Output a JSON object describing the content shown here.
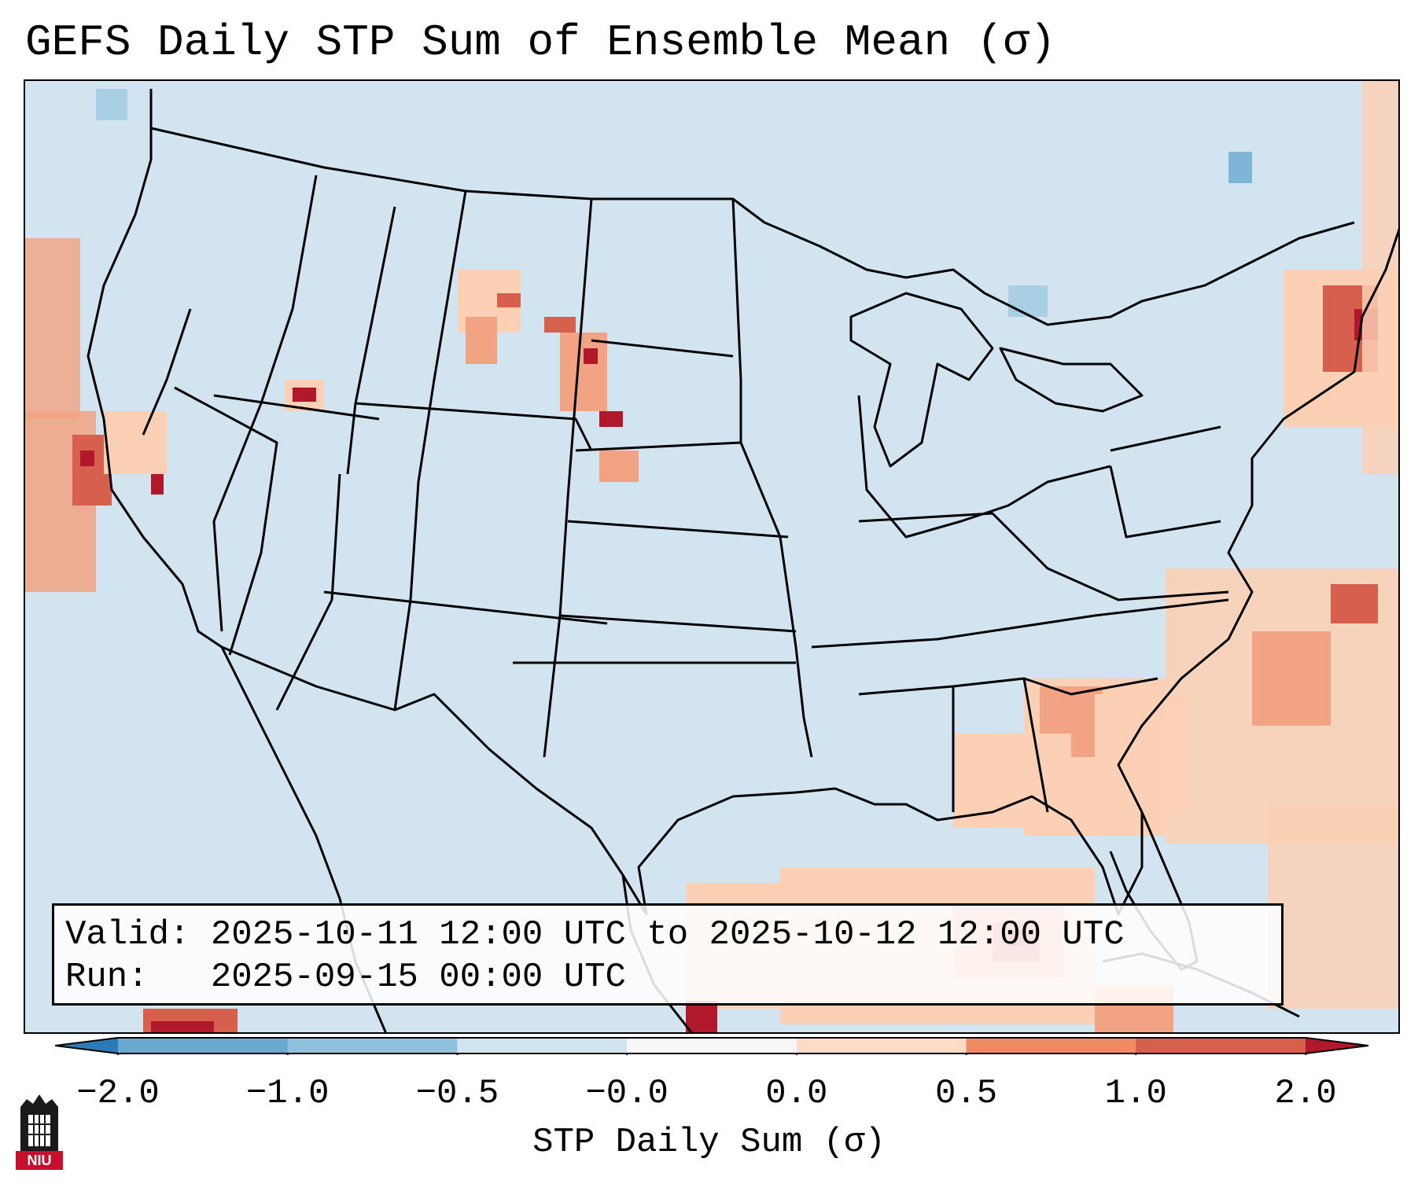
{
  "title": "GEFS Daily STP Sum of Ensemble Mean (σ)",
  "info": {
    "valid_label": "Valid:",
    "valid_value": "2025-10-11 12:00 UTC to 2025-10-12 12:00 UTC",
    "run_label": "Run:",
    "run_value": "2025-09-15 00:00 UTC"
  },
  "colorbar": {
    "label": "STP Daily Sum (σ)",
    "ticks": [
      "−2.0",
      "−1.0",
      "−0.5",
      "−0.0",
      "0.0",
      "0.5",
      "1.0",
      "2.0"
    ],
    "colors": [
      "#2c7bb6",
      "#67a9cf",
      "#8fc1dc",
      "#d1e5f0",
      "#f7f7f7",
      "#fddbc7",
      "#ef8a62",
      "#d6604d",
      "#b2182b"
    ]
  },
  "map_legend_colors": {
    "background": "#d1e4ef",
    "light": "#fcd0b5",
    "medium": "#f2a383",
    "strong": "#d6604d",
    "extreme": "#b2182b",
    "neg_light": "#a9cfe4",
    "neg_medium": "#7fb6d8"
  },
  "logo": {
    "text": "NIU"
  }
}
